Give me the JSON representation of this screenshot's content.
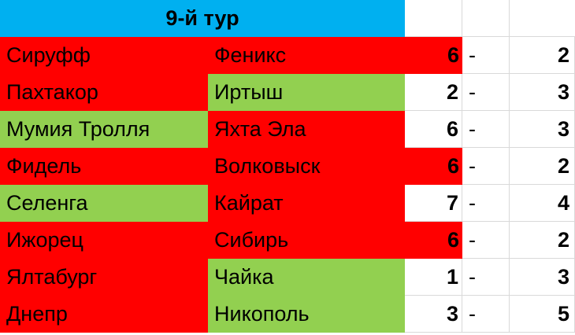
{
  "title": "9-й тур",
  "dash": "-",
  "matches": [
    {
      "home": "Сируфф",
      "home_color": "red",
      "away": "Феникс",
      "away_color": "red",
      "home_score": "6",
      "hs_color": "red",
      "away_score": "2"
    },
    {
      "home": "Пахтакор",
      "home_color": "red",
      "away": "Иртыш",
      "away_color": "green",
      "home_score": "2",
      "hs_color": "white",
      "away_score": "3"
    },
    {
      "home": "Мумия Тролля",
      "home_color": "green",
      "away": "Яхта Эла",
      "away_color": "red",
      "home_score": "6",
      "hs_color": "white",
      "away_score": "3"
    },
    {
      "home": "Фидель",
      "home_color": "red",
      "away": "Волковыск",
      "away_color": "red",
      "home_score": "6",
      "hs_color": "red",
      "away_score": "2"
    },
    {
      "home": "Селенга",
      "home_color": "green",
      "away": "Кайрат",
      "away_color": "red",
      "home_score": "7",
      "hs_color": "white",
      "away_score": "4"
    },
    {
      "home": "Ижорец",
      "home_color": "red",
      "away": "Сибирь",
      "away_color": "red",
      "home_score": "6",
      "hs_color": "red",
      "away_score": "2"
    },
    {
      "home": "Ялтабург",
      "home_color": "red",
      "away": "Чайка",
      "away_color": "green",
      "home_score": "1",
      "hs_color": "white",
      "away_score": "3"
    },
    {
      "home": "Днепр",
      "home_color": "red",
      "away": "Никополь",
      "away_color": "green",
      "home_score": "3",
      "hs_color": "white",
      "away_score": "5"
    }
  ],
  "colors": {
    "red": "#ff0000",
    "green": "#92d050",
    "blue": "#00b0f0",
    "white": "#ffffff"
  }
}
